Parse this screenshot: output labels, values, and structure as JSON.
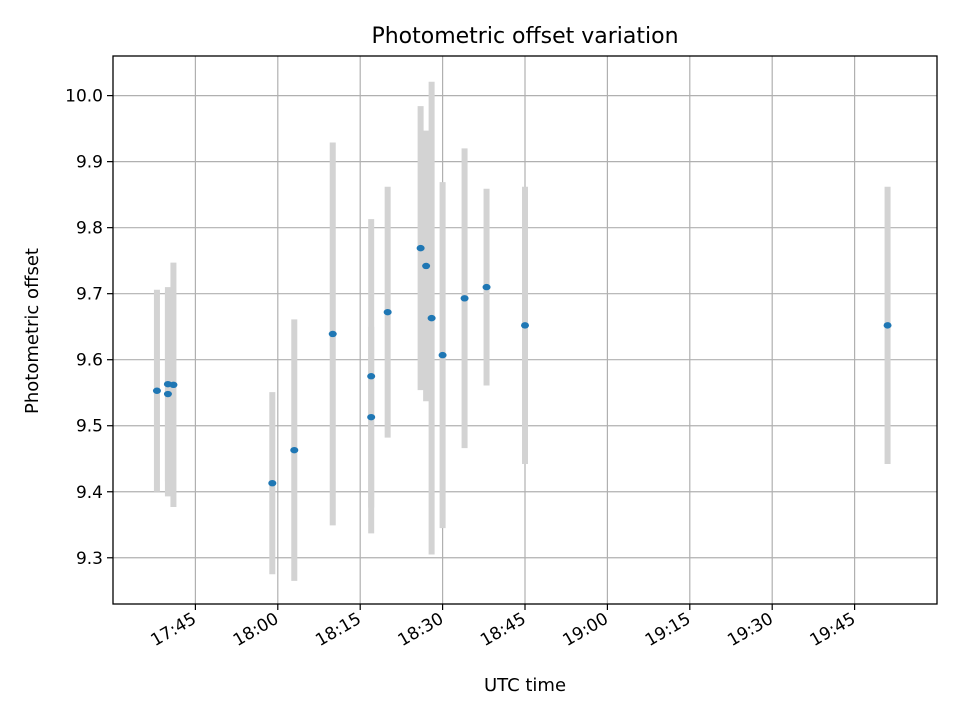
{
  "chart_data": {
    "type": "scatter",
    "title": "Photometric offset variation",
    "xlabel": "UTC time",
    "ylabel": "Photometric offset",
    "grid": true,
    "xlim": [
      "17:30",
      "20:00"
    ],
    "ylim": [
      9.23,
      10.06
    ],
    "xticks": [
      "17:45",
      "18:00",
      "18:15",
      "18:30",
      "18:45",
      "19:00",
      "19:15",
      "19:30",
      "19:45"
    ],
    "yticks": [
      9.3,
      9.4,
      9.5,
      9.6,
      9.7,
      9.8,
      9.9,
      10.0
    ],
    "colors": {
      "points": "#1f77b4",
      "errorbars": "#d3d3d3",
      "grid": "#b0b0b0"
    },
    "points": [
      {
        "x": "17:38",
        "y": 9.553,
        "err": 0.153
      },
      {
        "x": "17:40",
        "y": 9.548,
        "err": 0.155
      },
      {
        "x": "17:40",
        "y": 9.563,
        "err": 0.147
      },
      {
        "x": "17:41",
        "y": 9.562,
        "err": 0.185
      },
      {
        "x": "17:59",
        "y": 9.413,
        "err": 0.138
      },
      {
        "x": "18:03",
        "y": 9.463,
        "err": 0.198
      },
      {
        "x": "18:10",
        "y": 9.639,
        "err": 0.29
      },
      {
        "x": "18:17",
        "y": 9.513,
        "err": 0.137
      },
      {
        "x": "18:17",
        "y": 9.575,
        "err": 0.238
      },
      {
        "x": "18:20",
        "y": 9.672,
        "err": 0.19
      },
      {
        "x": "18:26",
        "y": 9.769,
        "err": 0.215
      },
      {
        "x": "18:27",
        "y": 9.742,
        "err": 0.205
      },
      {
        "x": "18:28",
        "y": 9.663,
        "err": 0.358
      },
      {
        "x": "18:30",
        "y": 9.607,
        "err": 0.262
      },
      {
        "x": "18:34",
        "y": 9.693,
        "err": 0.227
      },
      {
        "x": "18:38",
        "y": 9.71,
        "err": 0.149
      },
      {
        "x": "18:45",
        "y": 9.652,
        "err": 0.21
      },
      {
        "x": "19:51",
        "y": 9.652,
        "err": 0.21
      }
    ]
  }
}
